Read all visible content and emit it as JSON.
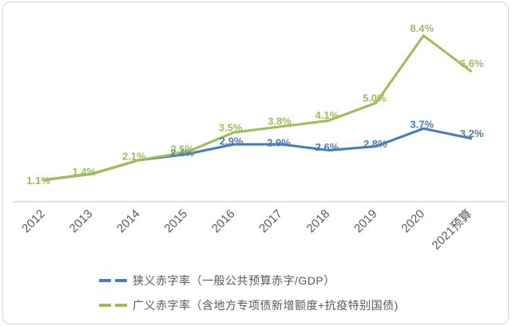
{
  "chart_data": {
    "type": "line",
    "title": "",
    "xlabel": "",
    "ylabel": "",
    "grid": false,
    "ylim": [
      0,
      9.5
    ],
    "legend_position": "bottom-left",
    "axis_color": "#d9d9d9",
    "tick_label_color": "#595959",
    "categories": [
      "2012",
      "2013",
      "2014",
      "2015",
      "2016",
      "2017",
      "2018",
      "2019",
      "2020",
      "2021预算"
    ],
    "series": [
      {
        "name": "狭义赤字率（一般公共预算赤字/GDP）",
        "color": "#4a7db8",
        "values": [
          1.1,
          1.4,
          2.1,
          2.4,
          2.9,
          2.9,
          2.6,
          2.8,
          3.7,
          3.2
        ],
        "labels": [
          "",
          "",
          "",
          "2.4%",
          "2.9%",
          "2.9%",
          "2.6%",
          "2.8%",
          "3.7%",
          "3.2%"
        ],
        "label_offsets": [
          [
            0,
            0
          ],
          [
            0,
            0
          ],
          [
            0,
            0
          ],
          [
            -5,
            -2
          ],
          [
            -3,
            -4
          ],
          [
            -3,
            -2
          ],
          [
            -2,
            -4
          ],
          [
            -1,
            -3
          ],
          [
            -2,
            -5
          ],
          [
            1,
            -6
          ]
        ]
      },
      {
        "name": "广义赤字率（含地方专项债新增额度+抗疫特别国债)",
        "color": "#9fbd59",
        "values": [
          1.1,
          1.4,
          2.1,
          2.5,
          3.5,
          3.8,
          4.1,
          5.0,
          8.4,
          6.6
        ],
        "labels": [
          "1.1%",
          "1.4%",
          "2.1%",
          "2.5%",
          "3.5%",
          "3.8%",
          "4.1%",
          "5.0%",
          "8.4%",
          "6.6%"
        ],
        "label_offsets": [
          [
            -7,
            1
          ],
          [
            -9,
            -3
          ],
          [
            -6,
            -5
          ],
          [
            -5,
            -4
          ],
          [
            -4,
            -6
          ],
          [
            -2,
            -7
          ],
          [
            -2,
            -7
          ],
          [
            -2,
            -6
          ],
          [
            -2,
            -9
          ],
          [
            1,
            -10
          ]
        ]
      }
    ]
  }
}
